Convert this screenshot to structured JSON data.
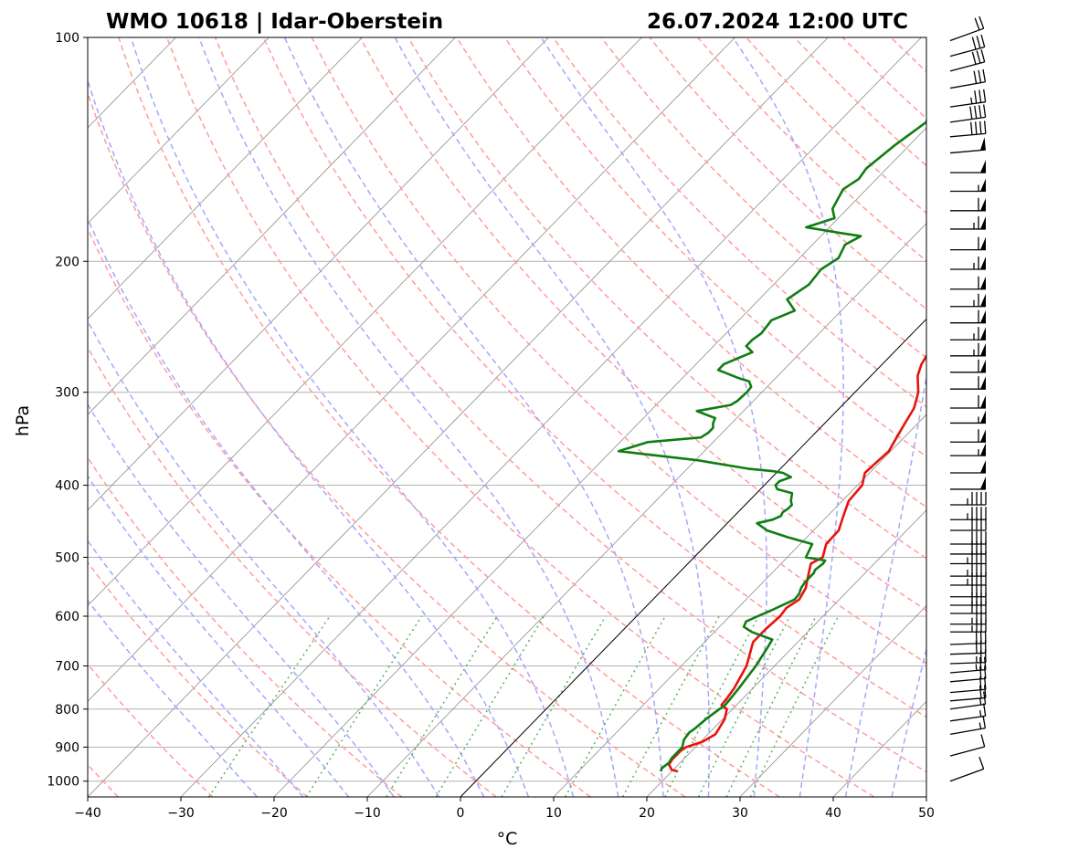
{
  "chart_data": {
    "type": "line",
    "title_left": "WMO 10618 | Idar-Oberstein",
    "title_right": "26.07.2024 12:00 UTC",
    "xlabel": "°C",
    "ylabel": "hPa",
    "xlim": [
      -40,
      50
    ],
    "ylim": [
      1050,
      100
    ],
    "y_scale": "log",
    "skew": true,
    "grid": true,
    "x_ticks": [
      -40,
      -30,
      -20,
      -10,
      0,
      10,
      20,
      30,
      40,
      50
    ],
    "x_tick_labels": [
      "−40",
      "−30",
      "−20",
      "−10",
      "0",
      "10",
      "20",
      "30",
      "40",
      "50"
    ],
    "y_ticks": [
      100,
      200,
      300,
      400,
      500,
      600,
      700,
      800,
      900,
      1000
    ],
    "y_tick_labels": [
      "100",
      "200",
      "300",
      "400",
      "500",
      "600",
      "700",
      "800",
      "900",
      "1000"
    ],
    "colors": {
      "temperature": "#e8120c",
      "dewpoint": "#0f7d12",
      "dry_adiabat": "#ff9c9c",
      "moist_adiabat": "#a6a6ff",
      "mixing_ratio": "#57b257",
      "isotherm": "#8c8c8c",
      "isobar": "#b2b2b2",
      "zero_isotherm": "#000000"
    },
    "series": [
      {
        "key": "temperature",
        "pressure": [
          970,
          965,
          950,
          935,
          925,
          910,
          900,
          885,
          865,
          850,
          825,
          800,
          790,
          775,
          750,
          700,
          650,
          625,
          600,
          585,
          570,
          550,
          530,
          510,
          500,
          480,
          460,
          440,
          420,
          400,
          385,
          375,
          360,
          345,
          330,
          315,
          300,
          285,
          275,
          262,
          250,
          240,
          230,
          220,
          210,
          200,
          195,
          190,
          185,
          180,
          178,
          175,
          170,
          160,
          155,
          150,
          145,
          140,
          135,
          130,
          125,
          120,
          115,
          110,
          105,
          100
        ],
        "values": [
          20.6,
          19.8,
          19.0,
          18.8,
          18.8,
          18.8,
          19.0,
          20.2,
          20.8,
          20.6,
          20.2,
          19.4,
          18.4,
          18.3,
          18.0,
          17.0,
          15.2,
          15.2,
          15.4,
          15.2,
          15.7,
          15.2,
          14.2,
          13.2,
          13.8,
          12.8,
          12.7,
          11.7,
          10.7,
          10.5,
          9.5,
          9.6,
          9.8,
          9.2,
          8.6,
          8.0,
          6.8,
          5.0,
          4.2,
          3.6,
          2.4,
          0.8,
          -0.6,
          -2.0,
          -3.4,
          -4.4,
          -3.8,
          -3.3,
          -2.6,
          -2.0,
          -1.8,
          3.0,
          10.0,
          12.0,
          13.8,
          13.8,
          15.5,
          16.0,
          16.5,
          17.5,
          19.5,
          20.0,
          20.0,
          21.5,
          21.3,
          20.8
        ],
        "name": ""
      },
      {
        "key": "dewpoint",
        "pressure": [
          970,
          960,
          945,
          930,
          910,
          900,
          880,
          860,
          850,
          825,
          800,
          790,
          775,
          750,
          700,
          660,
          645,
          640,
          630,
          620,
          610,
          600,
          590,
          570,
          560,
          550,
          540,
          525,
          520,
          510,
          505,
          500,
          480,
          470,
          460,
          450,
          445,
          440,
          435,
          430,
          425,
          420,
          410,
          405,
          400,
          395,
          390,
          385,
          383,
          380,
          370,
          365,
          360,
          350,
          345,
          340,
          335,
          330,
          325,
          318,
          312,
          308,
          300,
          295,
          290,
          287,
          280,
          275,
          265,
          260,
          255,
          250,
          240,
          233,
          225,
          215,
          205,
          198,
          190,
          185,
          183,
          180,
          175,
          170,
          160,
          155,
          150,
          140,
          130,
          120,
          115,
          110,
          105,
          100
        ],
        "values": [
          18.8,
          18.6,
          18.8,
          18.6,
          18.6,
          18.6,
          18.0,
          17.8,
          18.0,
          18.2,
          18.6,
          18.8,
          18.7,
          18.5,
          18.0,
          17.3,
          17.0,
          16.0,
          14.0,
          12.6,
          12.3,
          13.0,
          13.8,
          15.2,
          15.1,
          14.7,
          14.5,
          14.5,
          14.3,
          14.5,
          14.4,
          12.0,
          11.3,
          8.0,
          5.0,
          3.2,
          4.5,
          5.0,
          4.8,
          5.0,
          5.0,
          4.5,
          3.8,
          1.8,
          1.2,
          1.2,
          2.0,
          0.7,
          -0.5,
          -3.5,
          -10.0,
          -14.6,
          -19.2,
          -17.0,
          -11.8,
          -11.5,
          -11.5,
          -12.0,
          -12.3,
          -15.0,
          -12.0,
          -11.7,
          -11.6,
          -11.7,
          -12.5,
          -14.0,
          -17.0,
          -17.0,
          -15.2,
          -16.5,
          -16.5,
          -16.2,
          -16.5,
          -15.0,
          -17.0,
          -16.2,
          -16.5,
          -15.8,
          -16.5,
          -15.7,
          -18.5,
          -22.5,
          -20.4,
          -21.6,
          -22.5,
          -21.9,
          -22.2,
          -21.6,
          -20.6,
          -22.5,
          -21.5,
          -20.6,
          -20.5,
          -20.2
        ],
        "name": ""
      }
    ],
    "wind_barbs": {
      "pressure": [
        1000,
        925,
        865,
        830,
        800,
        780,
        760,
        735,
        715,
        695,
        675,
        655,
        630,
        615,
        595,
        580,
        565,
        545,
        530,
        510,
        495,
        480,
        460,
        445,
        425,
        405,
        385,
        365,
        350,
        330,
        315,
        297,
        282,
        268,
        255,
        242,
        230,
        218,
        205,
        193,
        181,
        171,
        161,
        152,
        143,
        136,
        130,
        124,
        117,
        111,
        106,
        101
      ],
      "speed_kt": [
        10,
        10,
        15,
        15,
        15,
        20,
        20,
        20,
        25,
        25,
        30,
        30,
        35,
        35,
        40,
        40,
        40,
        45,
        45,
        45,
        40,
        40,
        40,
        45,
        45,
        50,
        50,
        55,
        60,
        55,
        60,
        60,
        60,
        65,
        65,
        60,
        65,
        60,
        65,
        60,
        65,
        60,
        55,
        50,
        50,
        40,
        40,
        35,
        30,
        30,
        30,
        20
      ],
      "direction_deg": [
        250,
        255,
        260,
        262,
        262,
        265,
        265,
        265,
        265,
        268,
        268,
        268,
        270,
        270,
        270,
        270,
        270,
        270,
        270,
        270,
        270,
        270,
        270,
        270,
        270,
        270,
        270,
        270,
        270,
        270,
        270,
        270,
        270,
        270,
        270,
        270,
        270,
        270,
        270,
        270,
        270,
        270,
        270,
        270,
        265,
        265,
        262,
        262,
        260,
        255,
        255,
        250
      ]
    }
  }
}
